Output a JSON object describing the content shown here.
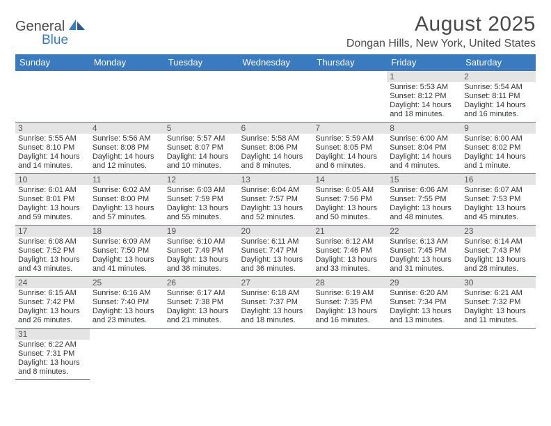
{
  "logo": {
    "word1": "General",
    "word2": "Blue"
  },
  "title": "August 2025",
  "location": "Dongan Hills, New York, United States",
  "header_bg": "#3a7bbf",
  "daynum_bg": "#e4e4e4",
  "border_color": "#3a7bbf",
  "weekdays": [
    "Sunday",
    "Monday",
    "Tuesday",
    "Wednesday",
    "Thursday",
    "Friday",
    "Saturday"
  ],
  "weeks": [
    [
      null,
      null,
      null,
      null,
      null,
      {
        "n": "1",
        "sr": "Sunrise: 5:53 AM",
        "ss": "Sunset: 8:12 PM",
        "d1": "Daylight: 14 hours",
        "d2": "and 18 minutes."
      },
      {
        "n": "2",
        "sr": "Sunrise: 5:54 AM",
        "ss": "Sunset: 8:11 PM",
        "d1": "Daylight: 14 hours",
        "d2": "and 16 minutes."
      }
    ],
    [
      {
        "n": "3",
        "sr": "Sunrise: 5:55 AM",
        "ss": "Sunset: 8:10 PM",
        "d1": "Daylight: 14 hours",
        "d2": "and 14 minutes."
      },
      {
        "n": "4",
        "sr": "Sunrise: 5:56 AM",
        "ss": "Sunset: 8:08 PM",
        "d1": "Daylight: 14 hours",
        "d2": "and 12 minutes."
      },
      {
        "n": "5",
        "sr": "Sunrise: 5:57 AM",
        "ss": "Sunset: 8:07 PM",
        "d1": "Daylight: 14 hours",
        "d2": "and 10 minutes."
      },
      {
        "n": "6",
        "sr": "Sunrise: 5:58 AM",
        "ss": "Sunset: 8:06 PM",
        "d1": "Daylight: 14 hours",
        "d2": "and 8 minutes."
      },
      {
        "n": "7",
        "sr": "Sunrise: 5:59 AM",
        "ss": "Sunset: 8:05 PM",
        "d1": "Daylight: 14 hours",
        "d2": "and 6 minutes."
      },
      {
        "n": "8",
        "sr": "Sunrise: 6:00 AM",
        "ss": "Sunset: 8:04 PM",
        "d1": "Daylight: 14 hours",
        "d2": "and 4 minutes."
      },
      {
        "n": "9",
        "sr": "Sunrise: 6:00 AM",
        "ss": "Sunset: 8:02 PM",
        "d1": "Daylight: 14 hours",
        "d2": "and 1 minute."
      }
    ],
    [
      {
        "n": "10",
        "sr": "Sunrise: 6:01 AM",
        "ss": "Sunset: 8:01 PM",
        "d1": "Daylight: 13 hours",
        "d2": "and 59 minutes."
      },
      {
        "n": "11",
        "sr": "Sunrise: 6:02 AM",
        "ss": "Sunset: 8:00 PM",
        "d1": "Daylight: 13 hours",
        "d2": "and 57 minutes."
      },
      {
        "n": "12",
        "sr": "Sunrise: 6:03 AM",
        "ss": "Sunset: 7:59 PM",
        "d1": "Daylight: 13 hours",
        "d2": "and 55 minutes."
      },
      {
        "n": "13",
        "sr": "Sunrise: 6:04 AM",
        "ss": "Sunset: 7:57 PM",
        "d1": "Daylight: 13 hours",
        "d2": "and 52 minutes."
      },
      {
        "n": "14",
        "sr": "Sunrise: 6:05 AM",
        "ss": "Sunset: 7:56 PM",
        "d1": "Daylight: 13 hours",
        "d2": "and 50 minutes."
      },
      {
        "n": "15",
        "sr": "Sunrise: 6:06 AM",
        "ss": "Sunset: 7:55 PM",
        "d1": "Daylight: 13 hours",
        "d2": "and 48 minutes."
      },
      {
        "n": "16",
        "sr": "Sunrise: 6:07 AM",
        "ss": "Sunset: 7:53 PM",
        "d1": "Daylight: 13 hours",
        "d2": "and 45 minutes."
      }
    ],
    [
      {
        "n": "17",
        "sr": "Sunrise: 6:08 AM",
        "ss": "Sunset: 7:52 PM",
        "d1": "Daylight: 13 hours",
        "d2": "and 43 minutes."
      },
      {
        "n": "18",
        "sr": "Sunrise: 6:09 AM",
        "ss": "Sunset: 7:50 PM",
        "d1": "Daylight: 13 hours",
        "d2": "and 41 minutes."
      },
      {
        "n": "19",
        "sr": "Sunrise: 6:10 AM",
        "ss": "Sunset: 7:49 PM",
        "d1": "Daylight: 13 hours",
        "d2": "and 38 minutes."
      },
      {
        "n": "20",
        "sr": "Sunrise: 6:11 AM",
        "ss": "Sunset: 7:47 PM",
        "d1": "Daylight: 13 hours",
        "d2": "and 36 minutes."
      },
      {
        "n": "21",
        "sr": "Sunrise: 6:12 AM",
        "ss": "Sunset: 7:46 PM",
        "d1": "Daylight: 13 hours",
        "d2": "and 33 minutes."
      },
      {
        "n": "22",
        "sr": "Sunrise: 6:13 AM",
        "ss": "Sunset: 7:45 PM",
        "d1": "Daylight: 13 hours",
        "d2": "and 31 minutes."
      },
      {
        "n": "23",
        "sr": "Sunrise: 6:14 AM",
        "ss": "Sunset: 7:43 PM",
        "d1": "Daylight: 13 hours",
        "d2": "and 28 minutes."
      }
    ],
    [
      {
        "n": "24",
        "sr": "Sunrise: 6:15 AM",
        "ss": "Sunset: 7:42 PM",
        "d1": "Daylight: 13 hours",
        "d2": "and 26 minutes."
      },
      {
        "n": "25",
        "sr": "Sunrise: 6:16 AM",
        "ss": "Sunset: 7:40 PM",
        "d1": "Daylight: 13 hours",
        "d2": "and 23 minutes."
      },
      {
        "n": "26",
        "sr": "Sunrise: 6:17 AM",
        "ss": "Sunset: 7:38 PM",
        "d1": "Daylight: 13 hours",
        "d2": "and 21 minutes."
      },
      {
        "n": "27",
        "sr": "Sunrise: 6:18 AM",
        "ss": "Sunset: 7:37 PM",
        "d1": "Daylight: 13 hours",
        "d2": "and 18 minutes."
      },
      {
        "n": "28",
        "sr": "Sunrise: 6:19 AM",
        "ss": "Sunset: 7:35 PM",
        "d1": "Daylight: 13 hours",
        "d2": "and 16 minutes."
      },
      {
        "n": "29",
        "sr": "Sunrise: 6:20 AM",
        "ss": "Sunset: 7:34 PM",
        "d1": "Daylight: 13 hours",
        "d2": "and 13 minutes."
      },
      {
        "n": "30",
        "sr": "Sunrise: 6:21 AM",
        "ss": "Sunset: 7:32 PM",
        "d1": "Daylight: 13 hours",
        "d2": "and 11 minutes."
      }
    ],
    [
      {
        "n": "31",
        "sr": "Sunrise: 6:22 AM",
        "ss": "Sunset: 7:31 PM",
        "d1": "Daylight: 13 hours",
        "d2": "and 8 minutes."
      },
      null,
      null,
      null,
      null,
      null,
      null
    ]
  ]
}
